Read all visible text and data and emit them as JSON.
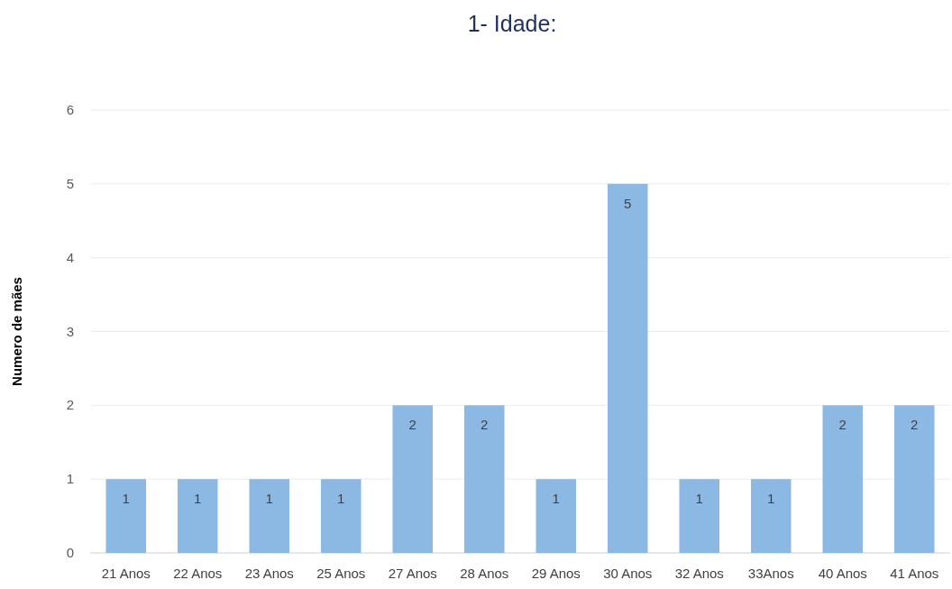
{
  "chart_data": {
    "type": "bar",
    "title": "1- Idade:",
    "ylabel": "Numero de mães",
    "categories": [
      "21 Anos",
      "22 Anos",
      "23 Anos",
      "25 Anos",
      "27 Anos",
      "28 Anos",
      "29 Anos",
      "30 Anos",
      "32 Anos",
      "33Anos",
      "40 Anos",
      "41 Anos"
    ],
    "values": [
      1,
      1,
      1,
      1,
      2,
      2,
      1,
      5,
      1,
      1,
      2,
      2
    ],
    "color": "#8cb9e3",
    "ylim": [
      0,
      6
    ],
    "yticks": [
      0,
      1,
      2,
      3,
      4,
      5,
      6
    ],
    "grid": "y",
    "data_labels": true
  }
}
